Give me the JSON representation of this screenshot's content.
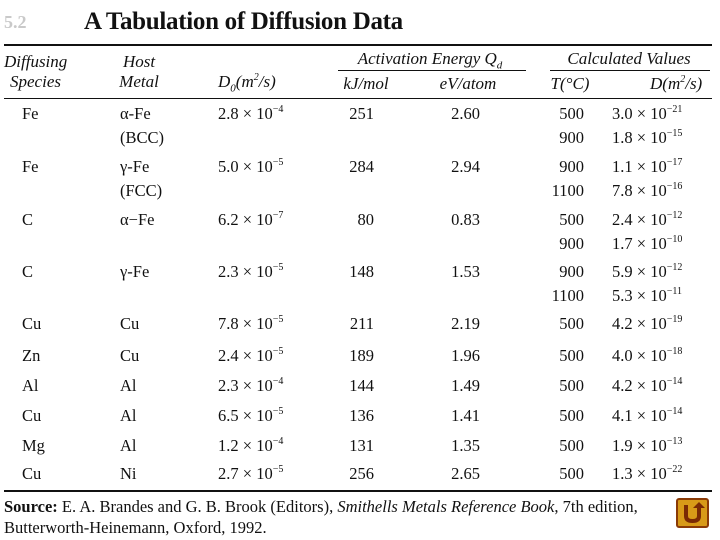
{
  "table_id": "5.2",
  "title": "A Tabulation of Diffusion Data",
  "headers": {
    "species_1": "Diffusing",
    "species_2": "Species",
    "host_1": "Host",
    "host_2": "Metal",
    "d0_base": "D",
    "d0_sub": "0",
    "d0_unit_a": "(m",
    "d0_unit_sup": "2",
    "d0_unit_b": "/s)",
    "activation_group": "Activation Energy Q",
    "activation_sub": "d",
    "kjmol": "kJ/mol",
    "evatom": "eV/atom",
    "calc_group": "Calculated Values",
    "temp": "T(°C)",
    "d_a": "D(m",
    "d_sup": "2",
    "d_b": "/s)"
  },
  "rows": [
    {
      "species": "Fe",
      "host": "α-Fe",
      "host2": "(BCC)",
      "d0_m": "2.8",
      "d0_e": "−4",
      "kj": "251",
      "ev": "2.60",
      "t1": "500",
      "d1_m": "3.0",
      "d1_e": "−21",
      "t2": "900",
      "d2_m": "1.8",
      "d2_e": "−15"
    },
    {
      "species": "Fe",
      "host": "γ-Fe",
      "host2": "(FCC)",
      "d0_m": "5.0",
      "d0_e": "−5",
      "kj": "284",
      "ev": "2.94",
      "t1": "900",
      "d1_m": "1.1",
      "d1_e": "−17",
      "t2": "1100",
      "d2_m": "7.8",
      "d2_e": "−16"
    },
    {
      "species": "C",
      "host": "α−Fe",
      "host2": "",
      "d0_m": "6.2",
      "d0_e": "−7",
      "kj": "80",
      "ev": "0.83",
      "t1": "500",
      "d1_m": "2.4",
      "d1_e": "−12",
      "t2": "900",
      "d2_m": "1.7",
      "d2_e": "−10"
    },
    {
      "species": "C",
      "host": "γ-Fe",
      "host2": "",
      "d0_m": "2.3",
      "d0_e": "−5",
      "kj": "148",
      "ev": "1.53",
      "t1": "900",
      "d1_m": "5.9",
      "d1_e": "−12",
      "t2": "1100",
      "d2_m": "5.3",
      "d2_e": "−11"
    },
    {
      "species": "Cu",
      "host": "Cu",
      "host2": "",
      "d0_m": "7.8",
      "d0_e": "−5",
      "kj": "211",
      "ev": "2.19",
      "t1": "500",
      "d1_m": "4.2",
      "d1_e": "−19",
      "t2": "",
      "d2_m": "",
      "d2_e": ""
    },
    {
      "species": "Zn",
      "host": "Cu",
      "host2": "",
      "d0_m": "2.4",
      "d0_e": "−5",
      "kj": "189",
      "ev": "1.96",
      "t1": "500",
      "d1_m": "4.0",
      "d1_e": "−18",
      "t2": "",
      "d2_m": "",
      "d2_e": ""
    },
    {
      "species": "Al",
      "host": "Al",
      "host2": "",
      "d0_m": "2.3",
      "d0_e": "−4",
      "kj": "144",
      "ev": "1.49",
      "t1": "500",
      "d1_m": "4.2",
      "d1_e": "−14",
      "t2": "",
      "d2_m": "",
      "d2_e": ""
    },
    {
      "species": "Cu",
      "host": "Al",
      "host2": "",
      "d0_m": "6.5",
      "d0_e": "−5",
      "kj": "136",
      "ev": "1.41",
      "t1": "500",
      "d1_m": "4.1",
      "d1_e": "−14",
      "t2": "",
      "d2_m": "",
      "d2_e": ""
    },
    {
      "species": "Mg",
      "host": "Al",
      "host2": "",
      "d0_m": "1.2",
      "d0_e": "−4",
      "kj": "131",
      "ev": "1.35",
      "t1": "500",
      "d1_m": "1.9",
      "d1_e": "−13",
      "t2": "",
      "d2_m": "",
      "d2_e": ""
    },
    {
      "species": "Cu",
      "host": "Ni",
      "host2": "",
      "d0_m": "2.7",
      "d0_e": "−5",
      "kj": "256",
      "ev": "2.65",
      "t1": "500",
      "d1_m": "1.3",
      "d1_e": "−22",
      "t2": "",
      "d2_m": "",
      "d2_e": ""
    }
  ],
  "times": "×",
  "ten": "10",
  "source": {
    "label": "Source:",
    "text_a": " E. A. Brandes and G. B. Brook (Editors), ",
    "book": "Smithells Metals Reference Book",
    "text_b": ", 7th edition, Butterworth-Heinemann, Oxford, 1992."
  },
  "nav_button": {
    "glyph": "U",
    "color": "#d89a18"
  }
}
